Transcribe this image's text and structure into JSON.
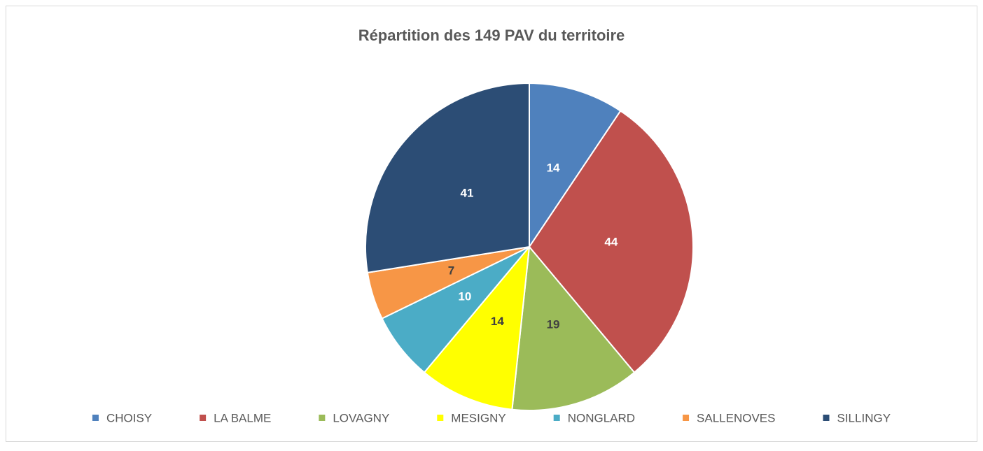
{
  "chart_data": {
    "type": "pie",
    "title": "Répartition des 149 PAV du territoire",
    "categories": [
      "CHOISY",
      "LA BALME",
      "LOVAGNY",
      "MESIGNY",
      "NONGLARD",
      "SALLENOVES",
      "SILLINGY"
    ],
    "values": [
      14,
      44,
      19,
      14,
      10,
      7,
      41
    ],
    "colors": [
      "#4f81bd",
      "#c0504d",
      "#9bbb59",
      "#ffff00",
      "#4bacc6",
      "#f79646",
      "#2c4d75"
    ],
    "legend": "bottom"
  }
}
